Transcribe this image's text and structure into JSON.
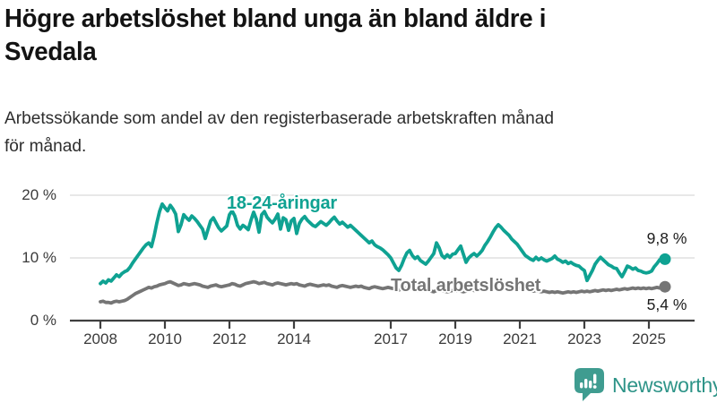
{
  "header": {
    "title_lines": [
      "Högre arbetslöshet bland unga än bland äldre i",
      "Svedala"
    ],
    "subtitle_lines": [
      "Arbetssökande som andel av den registerbaserade arbetskraften månad",
      "för månad."
    ]
  },
  "chart_data": {
    "type": "line",
    "title": "Högre arbetslöshet bland unga än bland äldre i Svedala",
    "subtitle": "Arbetssökande som andel av den registerbaserade arbetskraften månad för månad.",
    "unit": "%",
    "x_start_year": 2008,
    "points_per_year": 12,
    "x_tick_years": [
      2008,
      2010,
      2012,
      2014,
      2017,
      2019,
      2021,
      2023,
      2025
    ],
    "y_ticks": [
      {
        "value": 0,
        "label": "0 %"
      },
      {
        "value": 10,
        "label": "10 %"
      },
      {
        "value": 20,
        "label": "20 %"
      }
    ],
    "ylim": [
      0,
      21.5
    ],
    "grid": "horizontal",
    "legend_position": "inline-labels",
    "series": [
      {
        "name": "18-24-åringar",
        "color": "#0fa292",
        "end_label": "9,8 %",
        "end_value": 9.8,
        "values": [
          5.9,
          6.3,
          6.0,
          6.5,
          6.3,
          6.8,
          7.3,
          7.0,
          7.5,
          7.8,
          8.0,
          8.5,
          9.2,
          9.8,
          10.4,
          11.0,
          11.6,
          12.1,
          12.4,
          11.8,
          13.5,
          15.6,
          17.4,
          18.6,
          18.0,
          17.5,
          18.4,
          17.8,
          17.0,
          14.2,
          15.3,
          16.9,
          16.4,
          16.0,
          16.7,
          16.3,
          15.8,
          15.2,
          14.6,
          13.1,
          14.5,
          15.9,
          16.4,
          15.6,
          14.8,
          14.3,
          14.7,
          15.1,
          16.9,
          17.5,
          16.7,
          15.2,
          14.6,
          15.2,
          14.9,
          14.5,
          16.0,
          17.3,
          16.2,
          14.1,
          16.9,
          17.4,
          16.5,
          16.0,
          15.6,
          16.2,
          17.0,
          14.6,
          16.4,
          16.1,
          14.4,
          15.9,
          16.3,
          13.9,
          15.5,
          16.2,
          16.6,
          16.0,
          15.6,
          15.2,
          15.0,
          15.4,
          15.8,
          15.5,
          15.2,
          15.6,
          16.1,
          16.5,
          15.9,
          15.4,
          15.7,
          15.3,
          14.9,
          15.2,
          14.8,
          14.4,
          14.0,
          13.6,
          13.2,
          12.8,
          12.4,
          12.7,
          12.1,
          11.8,
          11.6,
          11.3,
          10.9,
          10.5,
          10.0,
          9.2,
          8.4,
          8.0,
          8.8,
          9.9,
          10.8,
          11.2,
          10.4,
          9.9,
          10.2,
          9.6,
          9.3,
          9.0,
          9.5,
          10.1,
          10.7,
          12.4,
          11.6,
          10.4,
          10.0,
          10.5,
          10.1,
          10.6,
          10.7,
          11.3,
          11.9,
          10.6,
          9.3,
          10.0,
          10.4,
          10.7,
          10.3,
          10.7,
          11.2,
          12.0,
          12.6,
          13.3,
          14.1,
          14.8,
          15.3,
          14.9,
          14.4,
          14.0,
          13.6,
          13.0,
          12.6,
          12.2,
          11.6,
          11.0,
          10.4,
          10.1,
          9.8,
          9.6,
          10.1,
          9.7,
          10.0,
          9.7,
          9.5,
          9.7,
          9.9,
          10.3,
          9.8,
          9.6,
          9.3,
          9.5,
          9.1,
          9.3,
          9.0,
          8.8,
          8.7,
          8.3,
          8.0,
          6.4,
          7.2,
          8.0,
          9.0,
          9.6,
          10.1,
          9.7,
          9.3,
          8.9,
          8.7,
          8.4,
          8.3,
          7.6,
          7.0,
          7.8,
          8.7,
          8.5,
          8.2,
          8.4,
          8.0,
          7.9,
          7.7,
          7.6,
          7.7,
          7.9,
          8.6,
          9.1,
          9.7,
          9.5,
          9.8
        ]
      },
      {
        "name": "Total arbetslöshet",
        "color": "#757575",
        "end_label": "5,4 %",
        "end_value": 5.4,
        "values": [
          3.0,
          3.1,
          2.9,
          2.9,
          2.8,
          3.0,
          3.1,
          3.0,
          3.1,
          3.2,
          3.4,
          3.7,
          4.0,
          4.3,
          4.5,
          4.7,
          4.9,
          5.1,
          5.3,
          5.2,
          5.4,
          5.5,
          5.7,
          5.8,
          5.9,
          6.1,
          6.2,
          6.0,
          5.8,
          5.6,
          5.7,
          5.9,
          5.8,
          5.7,
          5.8,
          5.9,
          5.8,
          5.7,
          5.5,
          5.4,
          5.3,
          5.5,
          5.6,
          5.7,
          5.5,
          5.4,
          5.5,
          5.6,
          5.7,
          5.9,
          5.8,
          5.6,
          5.5,
          5.7,
          5.9,
          6.0,
          6.1,
          6.2,
          6.1,
          5.9,
          6.0,
          6.1,
          5.9,
          5.8,
          5.7,
          5.9,
          6.0,
          5.9,
          5.8,
          5.7,
          5.8,
          5.9,
          5.8,
          5.9,
          5.7,
          5.6,
          5.5,
          5.7,
          5.8,
          5.7,
          5.6,
          5.5,
          5.6,
          5.7,
          5.6,
          5.7,
          5.5,
          5.4,
          5.3,
          5.5,
          5.6,
          5.5,
          5.4,
          5.3,
          5.4,
          5.5,
          5.4,
          5.5,
          5.3,
          5.2,
          5.1,
          5.3,
          5.4,
          5.3,
          5.2,
          5.1,
          5.2,
          5.3,
          5.2,
          5.1,
          5.0,
          4.9,
          5.0,
          5.1,
          5.2,
          5.1,
          5.0,
          4.9,
          4.8,
          4.9,
          4.8,
          4.9,
          4.8,
          4.7,
          4.6,
          4.8,
          4.9,
          4.8,
          4.7,
          4.6,
          4.7,
          4.8,
          4.7,
          4.8,
          4.7,
          4.6,
          4.7,
          4.8,
          4.9,
          4.8,
          4.9,
          5.0,
          4.9,
          5.0,
          5.1,
          5.3,
          5.5,
          5.8,
          6.0,
          5.9,
          5.8,
          5.7,
          5.6,
          5.5,
          5.4,
          5.3,
          5.2,
          5.1,
          5.0,
          4.9,
          4.8,
          4.7,
          4.8,
          4.7,
          4.6,
          4.7,
          4.6,
          4.5,
          4.6,
          4.5,
          4.6,
          4.5,
          4.4,
          4.5,
          4.6,
          4.5,
          4.6,
          4.5,
          4.6,
          4.7,
          4.6,
          4.7,
          4.6,
          4.7,
          4.8,
          4.7,
          4.8,
          4.9,
          4.8,
          4.9,
          4.8,
          4.9,
          5.0,
          4.9,
          5.0,
          5.1,
          5.0,
          5.1,
          5.2,
          5.1,
          5.2,
          5.1,
          5.2,
          5.1,
          5.2,
          5.1,
          5.2,
          5.3,
          5.2,
          5.3,
          5.4
        ]
      }
    ]
  },
  "footer": {
    "brand": "Newsworthy"
  },
  "colors": {
    "accent_teal": "#0fa292",
    "series_gray": "#757575",
    "grid": "#d9d9d9",
    "axis": "#3f3f3f",
    "logo_icon": "#3f9c90",
    "logo_text": "#2e9488"
  }
}
